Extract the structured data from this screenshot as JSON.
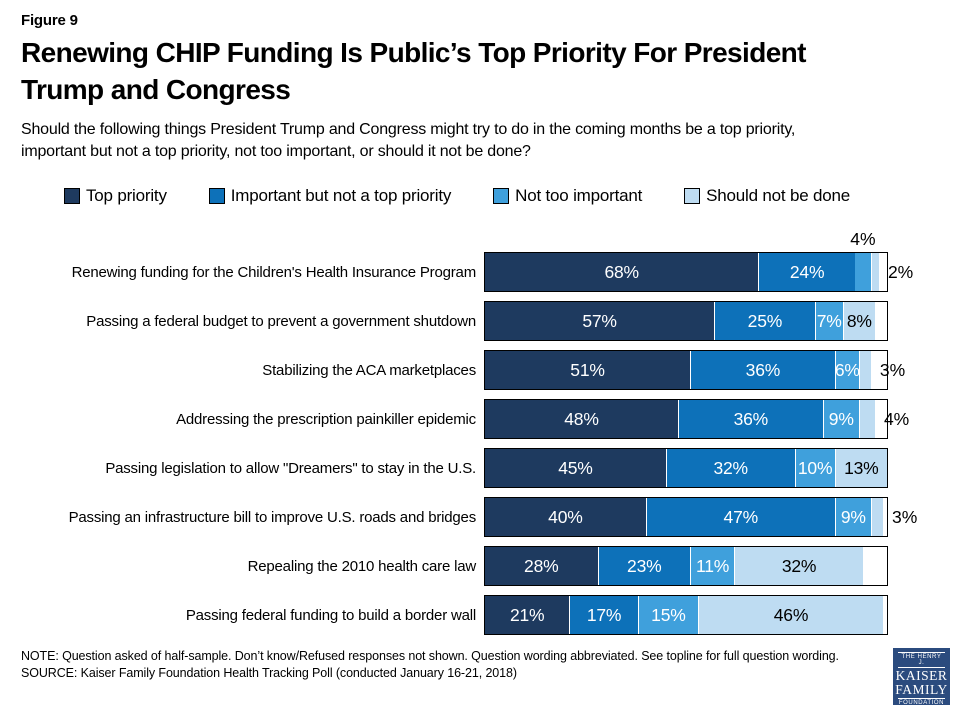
{
  "figure_label": "Figure 9",
  "title": "Renewing CHIP Funding Is Public’s Top Priority For President\nTrump and Congress",
  "subtitle": "Should the following things President Trump and Congress might try to do in the coming months be a top priority,\nimportant but not a top priority, not too important, or should it not be done?",
  "legend": [
    {
      "label": "Top priority",
      "color": "#1e3a5f",
      "text_color": "#ffffff"
    },
    {
      "label": "Important but not a top priority",
      "color": "#0d71b9",
      "text_color": "#ffffff"
    },
    {
      "label": "Not too important",
      "color": "#3fa0dc",
      "text_color": "#ffffff"
    },
    {
      "label": "Should not be done",
      "color": "#bedcf2",
      "text_color": "#000000"
    }
  ],
  "chart_data": {
    "type": "bar",
    "orientation": "horizontal",
    "stacked": true,
    "unit": "%",
    "xlim": [
      0,
      100
    ],
    "series_names": [
      "Top priority",
      "Important but not a top priority",
      "Not too important",
      "Should not be done"
    ],
    "categories": [
      "Renewing funding for the Children's Health Insurance Program",
      "Passing a federal budget to prevent a government shutdown",
      "Stabilizing the ACA marketplaces",
      "Addressing the prescription painkiller epidemic",
      "Passing legislation to allow \"Dreamers\" to stay in the U.S.",
      "Passing an infrastructure bill to improve U.S. roads and bridges",
      "Repealing the 2010 health care law",
      "Passing federal funding to build a border wall"
    ],
    "rows": [
      {
        "label": "Renewing funding for the Children's Health Insurance Program",
        "segments": [
          {
            "value": 68,
            "text": "68%",
            "placement": "inside"
          },
          {
            "value": 24,
            "text": "24%",
            "placement": "inside"
          },
          {
            "value": 4,
            "text": "4%",
            "placement": "above"
          },
          {
            "value": 2,
            "text": "2%",
            "placement": "outside"
          }
        ]
      },
      {
        "label": "Passing a federal budget to prevent a government shutdown",
        "segments": [
          {
            "value": 57,
            "text": "57%",
            "placement": "inside"
          },
          {
            "value": 25,
            "text": "25%",
            "placement": "inside"
          },
          {
            "value": 7,
            "text": "7%",
            "placement": "inside"
          },
          {
            "value": 8,
            "text": "8%",
            "placement": "inside"
          }
        ]
      },
      {
        "label": "Stabilizing the ACA marketplaces",
        "segments": [
          {
            "value": 51,
            "text": "51%",
            "placement": "inside"
          },
          {
            "value": 36,
            "text": "36%",
            "placement": "inside"
          },
          {
            "value": 6,
            "text": "6%",
            "placement": "inside"
          },
          {
            "value": 3,
            "text": "3%",
            "placement": "outside"
          }
        ]
      },
      {
        "label": "Addressing the prescription painkiller epidemic",
        "segments": [
          {
            "value": 48,
            "text": "48%",
            "placement": "inside"
          },
          {
            "value": 36,
            "text": "36%",
            "placement": "inside"
          },
          {
            "value": 9,
            "text": "9%",
            "placement": "inside"
          },
          {
            "value": 4,
            "text": "4%",
            "placement": "outside"
          }
        ]
      },
      {
        "label": "Passing legislation to allow \"Dreamers\" to stay in the U.S.",
        "segments": [
          {
            "value": 45,
            "text": "45%",
            "placement": "inside"
          },
          {
            "value": 32,
            "text": "32%",
            "placement": "inside"
          },
          {
            "value": 10,
            "text": "10%",
            "placement": "inside"
          },
          {
            "value": 13,
            "text": "13%",
            "placement": "inside"
          }
        ]
      },
      {
        "label": "Passing an infrastructure bill to improve U.S. roads and bridges",
        "segments": [
          {
            "value": 40,
            "text": "40%",
            "placement": "inside"
          },
          {
            "value": 47,
            "text": "47%",
            "placement": "inside"
          },
          {
            "value": 9,
            "text": "9%",
            "placement": "inside"
          },
          {
            "value": 3,
            "text": "3%",
            "placement": "outside"
          }
        ]
      },
      {
        "label": "Repealing the 2010 health care law",
        "segments": [
          {
            "value": 28,
            "text": "28%",
            "placement": "inside"
          },
          {
            "value": 23,
            "text": "23%",
            "placement": "inside"
          },
          {
            "value": 11,
            "text": "11%",
            "placement": "inside"
          },
          {
            "value": 32,
            "text": "32%",
            "placement": "inside"
          }
        ]
      },
      {
        "label": "Passing federal funding to build a border wall",
        "segments": [
          {
            "value": 21,
            "text": "21%",
            "placement": "inside"
          },
          {
            "value": 17,
            "text": "17%",
            "placement": "inside"
          },
          {
            "value": 15,
            "text": "15%",
            "placement": "inside"
          },
          {
            "value": 46,
            "text": "46%",
            "placement": "inside"
          }
        ]
      }
    ]
  },
  "footer": {
    "note": "NOTE: Question asked of half-sample. Don’t know/Refused responses not shown. Question wording abbreviated. See topline for full question wording.",
    "source": "SOURCE: Kaiser Family Foundation Health Tracking Poll (conducted January 16-21, 2018)"
  },
  "logo": {
    "line1": "THE HENRY J.",
    "line2": "KAISER",
    "line3": "FAMILY",
    "line4": "FOUNDATION"
  }
}
